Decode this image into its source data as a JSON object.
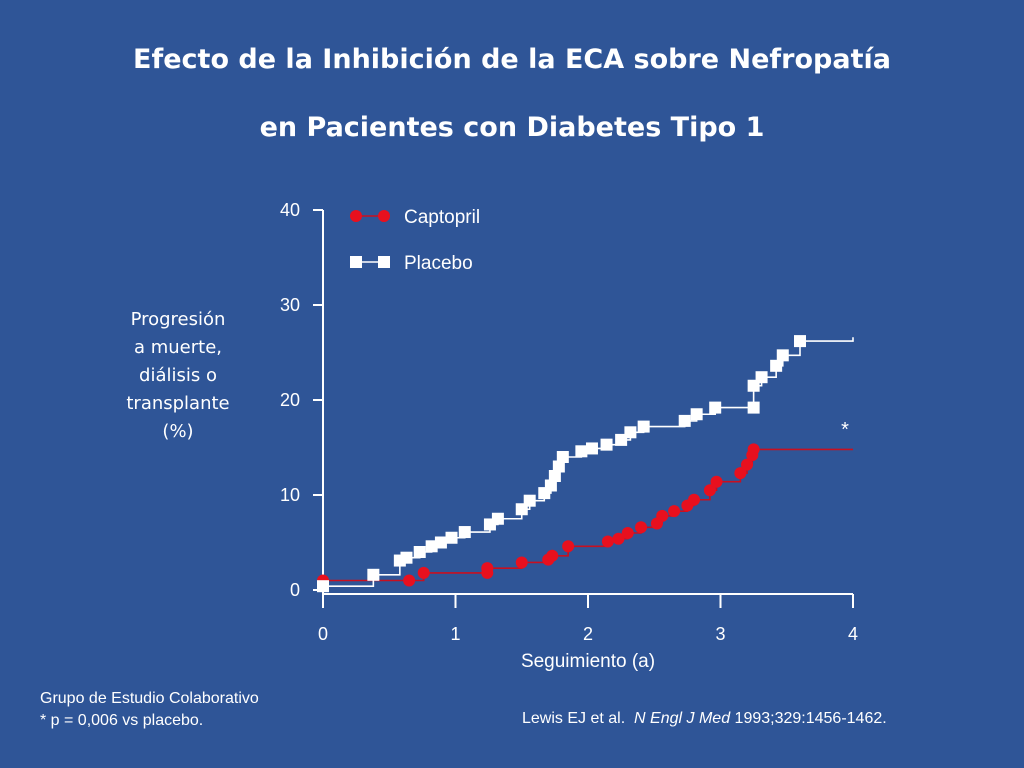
{
  "slide": {
    "title_line1": "Efecto de la Inhibición de la ECA sobre Nefropatía",
    "title_line2": "en Pacientes con Diabetes Tipo 1",
    "footnote_line1": "Grupo de Estudio Colaborativo",
    "footnote_line2": "* p = 0,006 vs placebo.",
    "citation_authors": "Lewis EJ et al.",
    "citation_journal": "N Engl J Med",
    "citation_rest": "1993;329:1456-1462."
  },
  "chart_data": {
    "type": "line",
    "xlabel": "Seguimiento (a)",
    "ylabel_lines": [
      "Progresión",
      "a muerte,",
      "diálisis o",
      "transplante",
      "(%)"
    ],
    "xlim": [
      0,
      4
    ],
    "ylim": [
      0,
      40
    ],
    "xticks": [
      "0",
      "1",
      "2",
      "3",
      "4"
    ],
    "yticks": [
      "0",
      "10",
      "20",
      "30",
      "40"
    ],
    "annotation": "*",
    "grid": false,
    "legend_position": "top-left",
    "series": [
      {
        "name": "Captopril",
        "marker": "circle",
        "color": "#e8101e",
        "line_color": "#c81020",
        "points": [
          [
            0.0,
            1.0
          ],
          [
            0.65,
            1.0
          ],
          [
            0.76,
            1.8
          ],
          [
            1.24,
            1.8
          ],
          [
            1.24,
            2.3
          ],
          [
            1.5,
            2.9
          ],
          [
            1.7,
            3.2
          ],
          [
            1.73,
            3.6
          ],
          [
            1.85,
            4.6
          ],
          [
            2.15,
            5.1
          ],
          [
            2.23,
            5.4
          ],
          [
            2.3,
            6.0
          ],
          [
            2.4,
            6.6
          ],
          [
            2.52,
            7.0
          ],
          [
            2.56,
            7.8
          ],
          [
            2.65,
            8.3
          ],
          [
            2.75,
            8.9
          ],
          [
            2.8,
            9.5
          ],
          [
            2.92,
            10.5
          ],
          [
            2.97,
            11.4
          ],
          [
            3.15,
            12.3
          ],
          [
            3.2,
            13.2
          ],
          [
            3.24,
            14.2
          ],
          [
            3.25,
            14.8
          ]
        ],
        "end": [
          4.0,
          14.8
        ]
      },
      {
        "name": "Placebo",
        "marker": "square",
        "color": "#ffffff",
        "line_color": "#ffffff",
        "points": [
          [
            0.0,
            0.4
          ],
          [
            0.38,
            1.6
          ],
          [
            0.58,
            3.1
          ],
          [
            0.63,
            3.4
          ],
          [
            0.73,
            4.0
          ],
          [
            0.82,
            4.6
          ],
          [
            0.89,
            5.0
          ],
          [
            0.97,
            5.5
          ],
          [
            1.07,
            6.1
          ],
          [
            1.26,
            6.9
          ],
          [
            1.32,
            7.5
          ],
          [
            1.5,
            8.5
          ],
          [
            1.56,
            9.4
          ],
          [
            1.67,
            10.2
          ],
          [
            1.72,
            11.0
          ],
          [
            1.75,
            12.0
          ],
          [
            1.78,
            13.0
          ],
          [
            1.81,
            14.0
          ],
          [
            1.95,
            14.6
          ],
          [
            2.03,
            14.9
          ],
          [
            2.14,
            15.3
          ],
          [
            2.25,
            15.8
          ],
          [
            2.32,
            16.6
          ],
          [
            2.42,
            17.2
          ],
          [
            2.73,
            17.8
          ],
          [
            2.82,
            18.5
          ],
          [
            2.96,
            19.2
          ],
          [
            3.25,
            19.2
          ],
          [
            3.25,
            21.5
          ],
          [
            3.31,
            22.4
          ],
          [
            3.42,
            23.6
          ],
          [
            3.47,
            24.7
          ],
          [
            3.6,
            26.2
          ]
        ],
        "end": [
          4.0,
          26.6
        ]
      }
    ]
  }
}
